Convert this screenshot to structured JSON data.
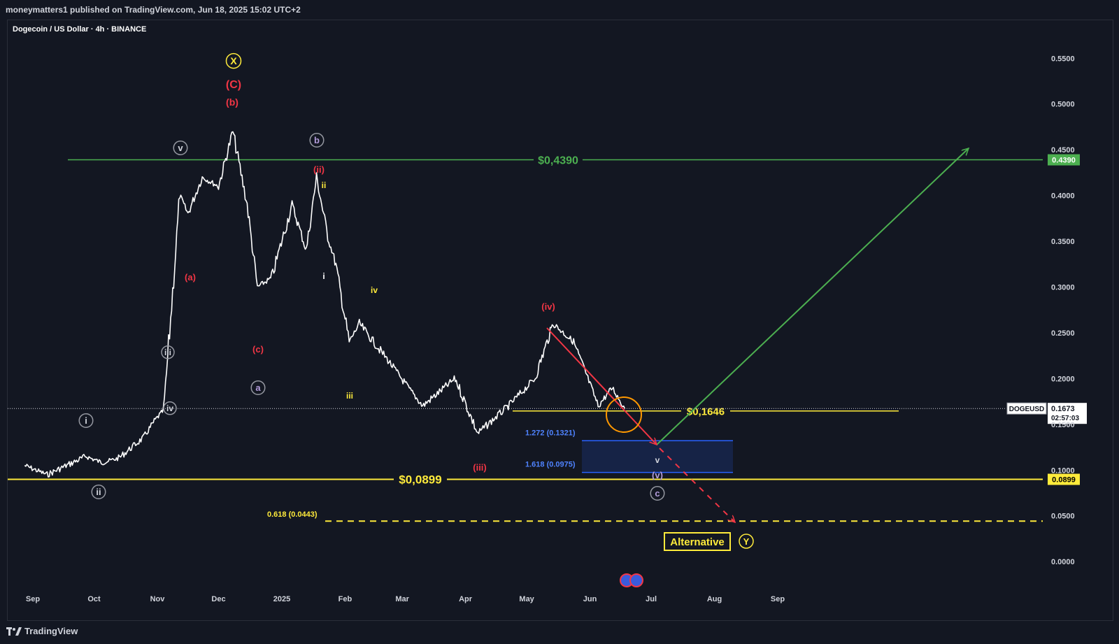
{
  "header": {
    "publisher": "moneymatters1 published on TradingView.com, Jun 18, 2025 15:02 UTC+2"
  },
  "symbol_title": "Dogecoin / US Dollar · 4h · BINANCE",
  "footer": {
    "logo_text": "TradingView"
  },
  "colors": {
    "background": "#131722",
    "candles": "#ffffff",
    "green": "#4caf50",
    "yellow": "#ffeb3b",
    "red": "#f23645",
    "blue_zone": "#1e3a8a",
    "orange": "#ff9800",
    "purple": "#b39ddb"
  },
  "chart_data": {
    "type": "line",
    "symbol": "DOGEUSD",
    "interval": "4h",
    "exchange": "BINANCE",
    "x_axis": {
      "ticks": [
        "Sep",
        "Oct",
        "Nov",
        "Dec",
        "2025",
        "Feb",
        "Mar",
        "Apr",
        "May",
        "Jun",
        "Jul",
        "Aug",
        "Sep"
      ]
    },
    "y_axis": {
      "ticks": [
        "0.5500",
        "0.5000",
        "0.4500",
        "0.4000",
        "0.3500",
        "0.3000",
        "0.2500",
        "0.2000",
        "0.1500",
        "0.1000",
        "0.0500",
        "0.0000"
      ],
      "ylim": [
        -0.035,
        0.58
      ]
    },
    "series": [
      {
        "x": [
          "2024-08-28",
          "2024-09-08",
          "2024-09-27",
          "2024-10-05",
          "2024-10-13",
          "2024-10-25",
          "2024-10-31",
          "2024-11-04",
          "2024-11-06",
          "2024-11-12",
          "2024-11-16",
          "2024-11-23",
          "2024-12-01",
          "2024-12-08",
          "2024-12-15",
          "2024-12-20",
          "2024-12-27",
          "2025-01-06",
          "2025-01-13",
          "2025-01-18",
          "2025-01-24",
          "2025-01-27",
          "2025-02-03",
          "2025-02-08",
          "2025-02-22",
          "2025-03-04",
          "2025-03-11",
          "2025-03-27",
          "2025-04-07",
          "2025-04-22",
          "2025-05-05",
          "2025-05-14",
          "2025-05-24",
          "2025-05-31",
          "2025-06-05",
          "2025-06-12",
          "2025-06-18"
        ],
        "values": [
          0.105,
          0.095,
          0.115,
          0.108,
          0.113,
          0.135,
          0.155,
          0.165,
          0.22,
          0.4,
          0.38,
          0.42,
          0.41,
          0.47,
          0.39,
          0.3,
          0.31,
          0.39,
          0.34,
          0.42,
          0.35,
          0.33,
          0.24,
          0.26,
          0.22,
          0.19,
          0.17,
          0.2,
          0.14,
          0.17,
          0.2,
          0.26,
          0.24,
          0.2,
          0.17,
          0.19,
          0.1673
        ]
      }
    ],
    "horizontal_levels": [
      {
        "label": "$0,4390",
        "value": 0.439,
        "axis_label": "0.4390"
      },
      {
        "label": "$0,1646",
        "value": 0.1646
      },
      {
        "label": "$0,0899",
        "value": 0.0899,
        "axis_label": "0.0899"
      },
      {
        "label": "0.618 (0.0443)",
        "value": 0.0443
      }
    ],
    "fib_zone": {
      "upper_label": "1.272 (0.1321)",
      "upper": 0.1321,
      "lower_label": "1.618 (0.0975)",
      "lower": 0.0975
    },
    "current_price": {
      "symbol": "DOGEUSD",
      "price": "0.1673",
      "countdown": "02:57:03"
    },
    "annotations": [
      "X",
      "(C)",
      "(b)",
      "v",
      "b",
      "(ii)",
      "ii",
      "(a)",
      "i",
      "iv",
      "(c)",
      "a",
      "iii",
      "iii",
      "iv",
      "i",
      "ii",
      "(iv)",
      "(iii)",
      "v",
      "(v)",
      "c",
      "Alternative",
      "Y"
    ]
  }
}
